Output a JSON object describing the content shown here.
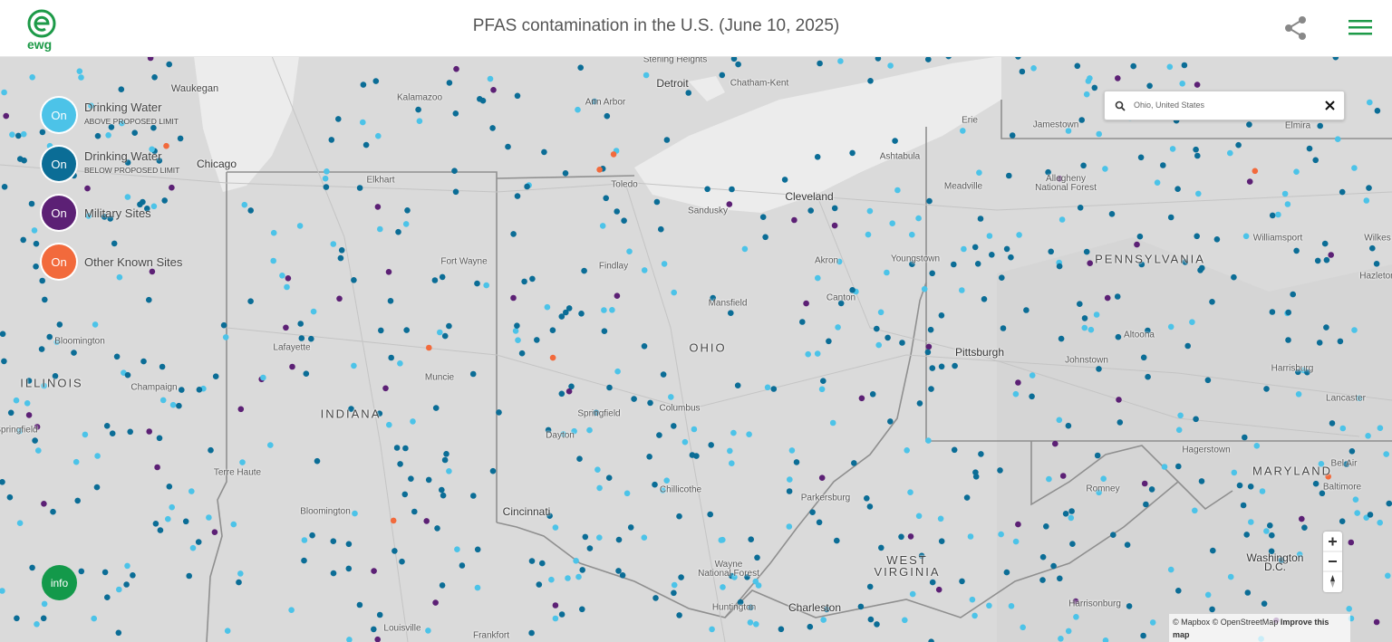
{
  "header": {
    "logo": "ewg",
    "title": "PFAS contamination in the U.S. (June 10, 2025)"
  },
  "legend": {
    "items": [
      {
        "state": "On",
        "label": "Drinking Water",
        "sublabel": "ABOVE PROPOSED LIMIT",
        "color": "#4cc3e8"
      },
      {
        "state": "On",
        "label": "Drinking Water",
        "sublabel": "BELOW PROPOSED LIMIT",
        "color": "#0b6d96"
      },
      {
        "state": "On",
        "label": "Military Sites",
        "color": "#5c2075"
      },
      {
        "state": "On",
        "label": "Other Known Sites",
        "color": "#f26a3c"
      }
    ]
  },
  "search": {
    "value": "Ohio, United States"
  },
  "info_button": "info",
  "map_labels": [
    "Waukegan",
    "Kalamazoo",
    "Ann Arbor",
    "Sterling Heights",
    "Detroit",
    "Chatham-Kent",
    "Erie",
    "Jamestown",
    "Elmira",
    "Chicago",
    "Elkhart",
    "Toledo",
    "Sandusky",
    "Cleveland",
    "Ashtabula",
    "Meadville",
    "Allegheny National Forest",
    "Fort Wayne",
    "Findlay",
    "Akron",
    "Youngstown",
    "Williamsport",
    "Wilkes",
    "PENNSYLVANIA",
    "Mansfield",
    "Canton",
    "Hazleton",
    "Bloomington",
    "Lafayette",
    "OHIO",
    "Pittsburgh",
    "Altoona",
    "Johnstown",
    "Harrisburg",
    "ILLINOIS",
    "Champaign",
    "Muncie",
    "Lancaster",
    "INDIANA",
    "Springfield",
    "Columbus",
    "Dayton",
    "Hagerstown",
    "Bel Air",
    "MARYLAND",
    "Baltimore",
    "Terre Haute",
    "Chillicothe",
    "Parkersburg",
    "Romney",
    "Bloomington",
    "Cincinnati",
    "Washington D.C.",
    "Wayne National Forest",
    "WEST VIRGINIA",
    "Huntington",
    "Charleston",
    "Harrisonburg",
    "Louisville",
    "Frankfort",
    "Springfield"
  ],
  "attribution": {
    "text": "© Mapbox © OpenStreetMap",
    "link": "Improve this map"
  }
}
